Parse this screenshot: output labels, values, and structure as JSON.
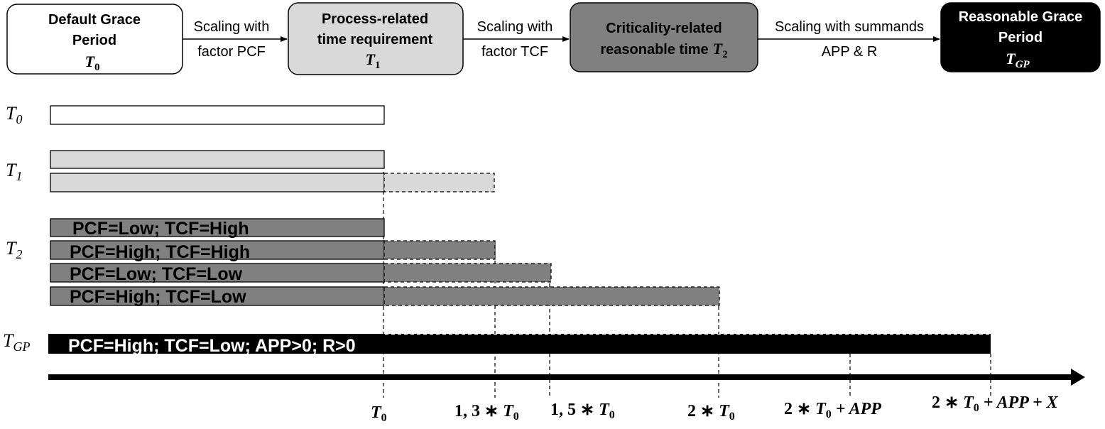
{
  "flow": {
    "stages": [
      {
        "line1": "Default Grace",
        "line2": "Period",
        "symbol": "T",
        "sub": "0",
        "fill": "#ffffff"
      },
      {
        "line1": "Process-related",
        "line2": "time requirement",
        "symbol": "T",
        "sub": "1",
        "fill": "#d9d9d9"
      },
      {
        "line1": "Criticality-related",
        "line2": "reasonable time",
        "symbol": "T",
        "sub": "2",
        "fill": "#808080"
      },
      {
        "line1": "Reasonable Grace",
        "line2": "Period",
        "symbol": "T",
        "sub": "GP",
        "fill": "#000000"
      }
    ],
    "arrows": [
      {
        "line1": "Scaling with",
        "line2": "factor PCF"
      },
      {
        "line1": "Scaling with",
        "line2": "factor TCF"
      },
      {
        "line1": "Scaling with summands",
        "line2": "APP & R"
      }
    ]
  },
  "rows": [
    {
      "symbol": "T",
      "sub": "0"
    },
    {
      "symbol": "T",
      "sub": "1"
    },
    {
      "symbol": "T",
      "sub": "2"
    },
    {
      "symbol": "T",
      "sub": "GP"
    }
  ],
  "bars": {
    "t2": [
      "PCF=Low; TCF=High",
      "PCF=High; TCF=High",
      "PCF=Low; TCF=Low",
      "PCF=High; TCF=Low"
    ],
    "tgp": "PCF=High; TCF=Low; APP>0; R>0"
  },
  "axis": {
    "ticks": [
      {
        "pre": "",
        "symbol": "T",
        "sub": "0",
        "post": ""
      },
      {
        "pre": "1, 3 ∗ ",
        "symbol": "T",
        "sub": "0",
        "post": ""
      },
      {
        "pre": "1, 5 ∗  ",
        "symbol": "T",
        "sub": "0",
        "post": ""
      },
      {
        "pre": "2 ∗  ",
        "symbol": "T",
        "sub": "0",
        "post": ""
      },
      {
        "pre": "2 ∗  ",
        "symbol": "T",
        "sub": "0",
        "post": " + APP"
      },
      {
        "pre": "2 ∗ ",
        "symbol": "T",
        "sub": "0",
        "post": " + APP + X"
      }
    ]
  },
  "colors": {
    "white": "#ffffff",
    "light_gray": "#d9d9d9",
    "mid_gray": "#808080",
    "black": "#000000"
  }
}
